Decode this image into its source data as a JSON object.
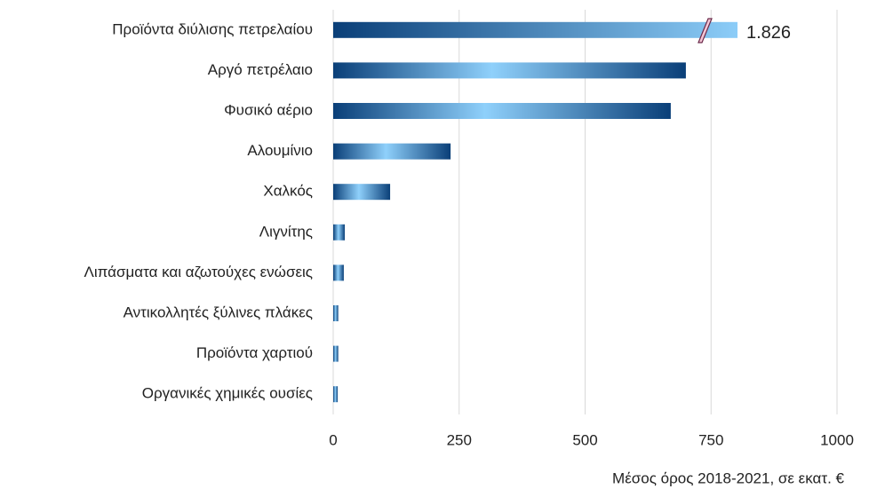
{
  "chart_data": {
    "type": "bar",
    "orientation": "horizontal",
    "categories": [
      "Προϊόντα διύλισης πετρελαίου",
      "Αργό πετρέλαιο",
      "Φυσικό αέριο",
      "Αλουμίνιο",
      "Χαλκός",
      "Λιγνίτης",
      "Λιπάσματα και αζωτούχες ενώσεις",
      "Αντικολλητές ξύλινες πλάκες",
      "Προϊόντα χαρτιού",
      "Οργανικές χημικές ουσίες"
    ],
    "values": [
      1826,
      700,
      670,
      233,
      113,
      23,
      21,
      10,
      10,
      9
    ],
    "value_labels": [
      "1.826",
      null,
      null,
      null,
      null,
      null,
      null,
      null,
      null,
      null
    ],
    "color": "#0b4f8f",
    "xlim": [
      0,
      1000
    ],
    "xticks": [
      0,
      250,
      500,
      750,
      1000
    ],
    "grid": true,
    "x_label": "Μέσος όρος 2018-2021, σε εκατ. €"
  }
}
